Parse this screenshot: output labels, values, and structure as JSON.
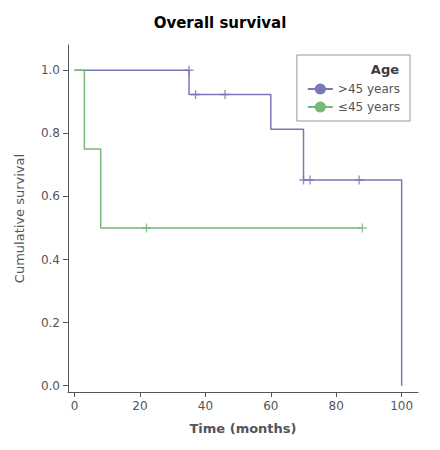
{
  "chart_data": {
    "type": "step",
    "title": "Overall survival",
    "xlabel": "Time (months)",
    "ylabel": "Cumulative survival",
    "xlim": [
      -2,
      105
    ],
    "ylim": [
      -0.02,
      1.08
    ],
    "xticks": [
      0,
      20,
      40,
      60,
      80,
      100
    ],
    "yticks": [
      {
        "value": 0.0,
        "label": "0.0"
      },
      0.2,
      0.4,
      0.6,
      0.8,
      {
        "value": 1.0,
        "label": "1.0"
      }
    ],
    "grid": false,
    "legend": "upper right",
    "legend_title": "Age",
    "series": [
      {
        "name": ">45 years",
        "color": "#7878b8",
        "x": [
          0,
          35,
          35,
          37,
          37,
          46,
          46,
          60,
          60,
          70,
          70,
          72,
          72,
          87,
          87,
          100,
          100
        ],
        "values": [
          1.0,
          1.0,
          0.923,
          0.923,
          0.923,
          0.923,
          0.923,
          0.923,
          0.813,
          0.813,
          0.652,
          0.652,
          0.652,
          0.652,
          0.652,
          0.652,
          0.0
        ],
        "censor_x": [
          35,
          37,
          46,
          70,
          72,
          87
        ],
        "censor_y": [
          1.0,
          0.923,
          0.923,
          0.652,
          0.652,
          0.652
        ]
      },
      {
        "name": "≤45 years",
        "color": "#78b878",
        "x": [
          0,
          3,
          3,
          8,
          8,
          12,
          12,
          88
        ],
        "values": [
          1.0,
          1.0,
          0.75,
          0.75,
          0.5,
          0.5,
          0.5,
          0.5
        ],
        "censor_x": [
          22,
          88
        ],
        "censor_y": [
          0.5,
          0.5
        ]
      }
    ]
  }
}
